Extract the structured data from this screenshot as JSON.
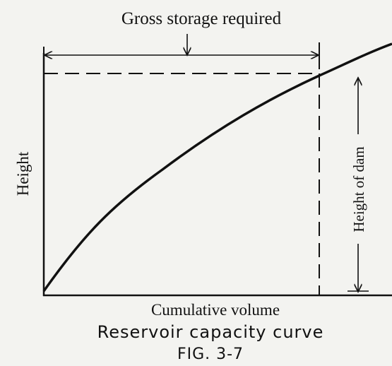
{
  "title": "Gross storage required",
  "y_label": "Height",
  "dam_label": "Height of dam",
  "x_label": "Cumulative volume",
  "caption": "Reservoir capacity curve",
  "figure": "FIG. 3-7"
}
